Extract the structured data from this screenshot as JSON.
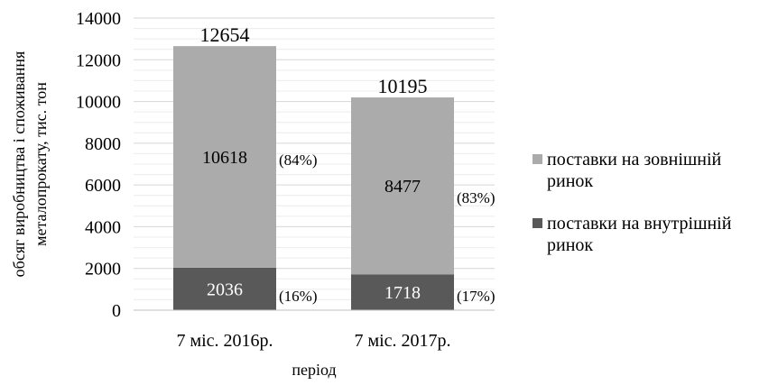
{
  "chart_data": {
    "type": "bar",
    "stacked": true,
    "categories": [
      "7 міс. 2016р.",
      "7 міс. 2017р."
    ],
    "series": [
      {
        "name": "поставки на внутрішній ринок",
        "values": [
          2036,
          1718
        ],
        "value_labels": [
          "2036",
          "1718"
        ],
        "share_labels": [
          "(16%)",
          "(17%)"
        ],
        "color": "#595959"
      },
      {
        "name": "поставки на зовнішній ринок",
        "values": [
          10618,
          8477
        ],
        "value_labels": [
          "10618",
          "8477"
        ],
        "share_labels": [
          "(84%)",
          "(83%)"
        ],
        "color": "#ababab"
      }
    ],
    "totals": [
      12654,
      10195
    ],
    "total_labels": [
      "12654",
      "10195"
    ],
    "xlabel": "період",
    "ylabel": "обсяг виробництва і споживання металопрокату, тис. тон",
    "ylabel_lines": [
      "обсяг виробництва і споживання",
      "металопрокату, тис. тон"
    ],
    "ylim": [
      0,
      14000
    ],
    "yticks": [
      0,
      2000,
      4000,
      6000,
      8000,
      10000,
      12000,
      14000
    ],
    "grid": true,
    "legend_position": "right",
    "legend": [
      {
        "lines": [
          "поставки на зовнішній",
          "ринок"
        ],
        "color": "#ababab"
      },
      {
        "lines": [
          "поставки на внутрішній",
          "ринок"
        ],
        "color": "#595959"
      }
    ]
  }
}
